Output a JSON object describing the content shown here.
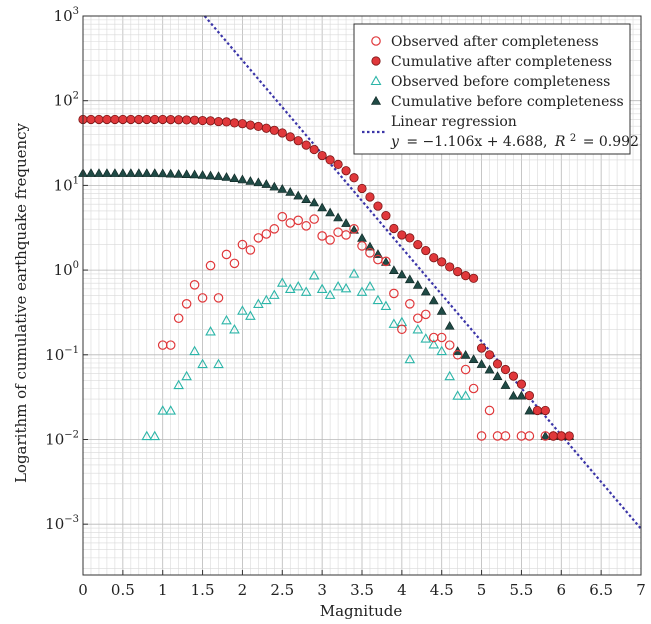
{
  "chart_data": {
    "type": "scatter",
    "xlabel": "Magnitude",
    "ylabel": "Logarithm of cumulative earthquake frequency",
    "xlim": [
      0,
      7
    ],
    "ylim_log10": [
      -3.6,
      3
    ],
    "y_scale": "log",
    "grid": true,
    "legend_position": "top-right",
    "x_ticks": [
      "0",
      "0.5",
      "1",
      "1.5",
      "2",
      "2.5",
      "3",
      "3.5",
      "4",
      "4.5",
      "5",
      "5.5",
      "6",
      "6.5",
      "7"
    ],
    "y_ticks": [
      {
        "base": "10",
        "exp": "3",
        "value": 1000
      },
      {
        "base": "10",
        "exp": "2",
        "value": 100
      },
      {
        "base": "10",
        "exp": "1",
        "value": 10
      },
      {
        "base": "10",
        "exp": "0",
        "value": 1
      },
      {
        "base": "10",
        "exp": "−1",
        "value": 0.1
      },
      {
        "base": "10",
        "exp": "−2",
        "value": 0.01
      },
      {
        "base": "10",
        "exp": "−3",
        "value": 0.001
      }
    ],
    "series": [
      {
        "name": "Observed after completeness",
        "marker": "circle-open",
        "color": "#e0383b",
        "points": [
          [
            1.0,
            0.13
          ],
          [
            1.1,
            0.13
          ],
          [
            1.2,
            0.27
          ],
          [
            1.3,
            0.4
          ],
          [
            1.4,
            0.67
          ],
          [
            1.5,
            0.47
          ],
          [
            1.6,
            1.13
          ],
          [
            1.7,
            0.47
          ],
          [
            1.8,
            1.53
          ],
          [
            1.9,
            1.2
          ],
          [
            2.0,
            2.0
          ],
          [
            2.1,
            1.73
          ],
          [
            2.2,
            2.4
          ],
          [
            2.3,
            2.67
          ],
          [
            2.4,
            3.07
          ],
          [
            2.5,
            4.27
          ],
          [
            2.6,
            3.6
          ],
          [
            2.7,
            3.87
          ],
          [
            2.8,
            3.33
          ],
          [
            2.9,
            4.0
          ],
          [
            3.0,
            2.53
          ],
          [
            3.1,
            2.27
          ],
          [
            3.2,
            2.8
          ],
          [
            3.3,
            2.6
          ],
          [
            3.4,
            3.07
          ],
          [
            3.5,
            1.93
          ],
          [
            3.6,
            1.6
          ],
          [
            3.7,
            1.33
          ],
          [
            3.8,
            1.27
          ],
          [
            3.9,
            0.53
          ],
          [
            4.0,
            0.2
          ],
          [
            4.1,
            0.4
          ],
          [
            4.2,
            0.27
          ],
          [
            4.3,
            0.3
          ],
          [
            4.4,
            0.16
          ],
          [
            4.5,
            0.16
          ],
          [
            4.6,
            0.13
          ],
          [
            4.7,
            0.1
          ],
          [
            4.8,
            0.067
          ],
          [
            4.9,
            0.04
          ],
          [
            5.0,
            0.011
          ],
          [
            5.1,
            0.022
          ],
          [
            5.2,
            0.011
          ],
          [
            5.3,
            0.011
          ],
          [
            5.5,
            0.011
          ],
          [
            5.6,
            0.011
          ],
          [
            5.8,
            0.011
          ],
          [
            5.9,
            0.011
          ],
          [
            6.0,
            0.011
          ]
        ]
      },
      {
        "name": "Cumulative after completeness",
        "marker": "circle-filled",
        "color": "#e0383b",
        "points": [
          [
            0.0,
            60
          ],
          [
            0.1,
            60
          ],
          [
            0.2,
            60
          ],
          [
            0.3,
            60
          ],
          [
            0.4,
            60
          ],
          [
            0.5,
            60
          ],
          [
            0.6,
            60
          ],
          [
            0.7,
            60
          ],
          [
            0.8,
            60
          ],
          [
            0.9,
            60
          ],
          [
            1.0,
            60
          ],
          [
            1.1,
            59.8
          ],
          [
            1.2,
            59.6
          ],
          [
            1.3,
            59.3
          ],
          [
            1.4,
            58.9
          ],
          [
            1.5,
            58.3
          ],
          [
            1.6,
            57.8
          ],
          [
            1.7,
            56.7
          ],
          [
            1.8,
            56.2
          ],
          [
            1.9,
            54.7
          ],
          [
            2.0,
            53.5
          ],
          [
            2.1,
            51.5
          ],
          [
            2.2,
            49.7
          ],
          [
            2.3,
            47.3
          ],
          [
            2.4,
            44.7
          ],
          [
            2.5,
            41.6
          ],
          [
            2.6,
            37.4
          ],
          [
            2.7,
            33.7
          ],
          [
            2.8,
            29.9
          ],
          [
            2.9,
            26.5
          ],
          [
            3.0,
            22.5
          ],
          [
            3.1,
            20.0
          ],
          [
            3.2,
            17.7
          ],
          [
            3.3,
            14.9
          ],
          [
            3.4,
            12.3
          ],
          [
            3.5,
            9.2
          ],
          [
            3.6,
            7.3
          ],
          [
            3.7,
            5.7
          ],
          [
            3.8,
            4.4
          ],
          [
            3.9,
            3.1
          ],
          [
            4.0,
            2.6
          ],
          [
            4.1,
            2.4
          ],
          [
            4.2,
            2.0
          ],
          [
            4.3,
            1.7
          ],
          [
            4.4,
            1.4
          ],
          [
            4.5,
            1.25
          ],
          [
            4.6,
            1.09
          ],
          [
            4.7,
            0.96
          ],
          [
            4.8,
            0.86
          ],
          [
            4.9,
            0.8
          ],
          [
            5.0,
            0.12
          ],
          [
            5.1,
            0.1
          ],
          [
            5.2,
            0.078
          ],
          [
            5.3,
            0.067
          ],
          [
            5.4,
            0.056
          ],
          [
            5.5,
            0.045
          ],
          [
            5.6,
            0.033
          ],
          [
            5.7,
            0.022
          ],
          [
            5.8,
            0.022
          ],
          [
            5.9,
            0.011
          ],
          [
            6.0,
            0.011
          ],
          [
            6.1,
            0.011
          ]
        ]
      },
      {
        "name": "Observed before completeness",
        "marker": "triangle-open",
        "color": "#2cb5a8",
        "points": [
          [
            0.8,
            0.011
          ],
          [
            0.9,
            0.011
          ],
          [
            1.0,
            0.022
          ],
          [
            1.1,
            0.022
          ],
          [
            1.2,
            0.044
          ],
          [
            1.3,
            0.056
          ],
          [
            1.4,
            0.111
          ],
          [
            1.5,
            0.078
          ],
          [
            1.6,
            0.189
          ],
          [
            1.7,
            0.078
          ],
          [
            1.8,
            0.256
          ],
          [
            1.9,
            0.2
          ],
          [
            2.0,
            0.333
          ],
          [
            2.1,
            0.289
          ],
          [
            2.2,
            0.4
          ],
          [
            2.3,
            0.444
          ],
          [
            2.4,
            0.511
          ],
          [
            2.5,
            0.711
          ],
          [
            2.6,
            0.6
          ],
          [
            2.7,
            0.644
          ],
          [
            2.8,
            0.556
          ],
          [
            2.9,
            0.867
          ],
          [
            3.0,
            0.6
          ],
          [
            3.1,
            0.511
          ],
          [
            3.2,
            0.644
          ],
          [
            3.3,
            0.611
          ],
          [
            3.4,
            0.911
          ],
          [
            3.5,
            0.556
          ],
          [
            3.6,
            0.644
          ],
          [
            3.7,
            0.444
          ],
          [
            3.8,
            0.378
          ],
          [
            3.9,
            0.233
          ],
          [
            4.0,
            0.244
          ],
          [
            4.1,
            0.089
          ],
          [
            4.2,
            0.2
          ],
          [
            4.3,
            0.156
          ],
          [
            4.4,
            0.133
          ],
          [
            4.5,
            0.111
          ],
          [
            4.6,
            0.056
          ],
          [
            4.7,
            0.033
          ],
          [
            4.8,
            0.033
          ]
        ]
      },
      {
        "name": "Cumulative before completeness",
        "marker": "triangle-filled",
        "color": "#1f4a45",
        "points": [
          [
            0.0,
            14
          ],
          [
            0.1,
            14
          ],
          [
            0.2,
            14
          ],
          [
            0.3,
            14
          ],
          [
            0.4,
            14
          ],
          [
            0.5,
            14
          ],
          [
            0.6,
            14
          ],
          [
            0.7,
            14
          ],
          [
            0.8,
            14
          ],
          [
            0.9,
            14
          ],
          [
            1.0,
            13.9
          ],
          [
            1.1,
            13.8
          ],
          [
            1.2,
            13.7
          ],
          [
            1.3,
            13.6
          ],
          [
            1.4,
            13.5
          ],
          [
            1.5,
            13.3
          ],
          [
            1.6,
            13.1
          ],
          [
            1.7,
            12.9
          ],
          [
            1.8,
            12.6
          ],
          [
            1.9,
            12.2
          ],
          [
            2.0,
            11.8
          ],
          [
            2.1,
            11.3
          ],
          [
            2.2,
            10.9
          ],
          [
            2.3,
            10.4
          ],
          [
            2.4,
            9.7
          ],
          [
            2.5,
            9.1
          ],
          [
            2.6,
            8.4
          ],
          [
            2.7,
            7.6
          ],
          [
            2.8,
            6.9
          ],
          [
            2.9,
            6.3
          ],
          [
            3.0,
            5.5
          ],
          [
            3.1,
            4.8
          ],
          [
            3.2,
            4.2
          ],
          [
            3.3,
            3.6
          ],
          [
            3.4,
            3.0
          ],
          [
            3.5,
            2.4
          ],
          [
            3.6,
            1.9
          ],
          [
            3.7,
            1.55
          ],
          [
            3.8,
            1.25
          ],
          [
            3.9,
            1.0
          ],
          [
            4.0,
            0.89
          ],
          [
            4.1,
            0.78
          ],
          [
            4.2,
            0.67
          ],
          [
            4.3,
            0.56
          ],
          [
            4.4,
            0.44
          ],
          [
            4.5,
            0.33
          ],
          [
            4.6,
            0.22
          ],
          [
            4.7,
            0.111
          ],
          [
            4.8,
            0.1
          ],
          [
            4.9,
            0.089
          ],
          [
            5.0,
            0.078
          ],
          [
            5.1,
            0.067
          ],
          [
            5.2,
            0.056
          ],
          [
            5.3,
            0.044
          ],
          [
            5.4,
            0.033
          ],
          [
            5.5,
            0.033
          ],
          [
            5.6,
            0.022
          ],
          [
            5.7,
            0.022
          ],
          [
            5.8,
            0.011
          ],
          [
            5.9,
            0.011
          ],
          [
            6.0,
            0.011
          ],
          [
            6.1,
            0.011
          ]
        ]
      }
    ],
    "regression": {
      "name": "Linear regression",
      "color": "#3b35a8",
      "slope": -1.106,
      "intercept": 4.688,
      "equation_lhs": "y",
      "equation_rhs": "= −1.106x + 4.688,",
      "r2_label": "R",
      "r2_exp": "2",
      "r2_value": "= 0.992"
    }
  }
}
